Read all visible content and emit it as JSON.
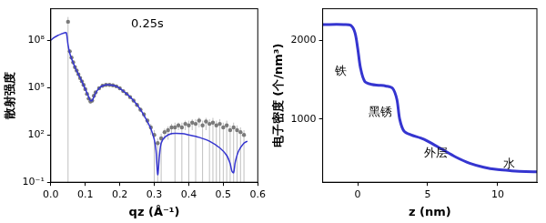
{
  "chart_data": [
    {
      "type": "scatter",
      "x_label": "qz (Å⁻¹)",
      "y_label": "散射强度",
      "annotations": [
        {
          "text": "0.25s",
          "x": 0.28,
          "y": 1000000000.0
        }
      ],
      "log": "y",
      "grid": false,
      "xlim": [
        0,
        0.6
      ],
      "xticks": [
        {
          "value": 0,
          "label": "0.0"
        },
        0.1,
        0.2,
        0.3,
        0.4,
        0.5,
        0.6
      ],
      "ylim": [
        0.1,
        10000000000.0
      ],
      "yticks": [
        {
          "value": 0.1,
          "label": "10⁻¹"
        },
        {
          "value": 100,
          "label": "10²"
        },
        {
          "value": 100000,
          "label": "10⁵"
        },
        {
          "value": 100000000,
          "label": "10⁸"
        }
      ],
      "series": [
        {
          "type": "scatter",
          "color": "#7a7a7a",
          "marker": "circle",
          "x": [
            0.05,
            0.055,
            0.06,
            0.065,
            0.07,
            0.075,
            0.08,
            0.085,
            0.09,
            0.095,
            0.1,
            0.105,
            0.11,
            0.115,
            0.12,
            0.125,
            0.13,
            0.14,
            0.15,
            0.16,
            0.17,
            0.18,
            0.19,
            0.2,
            0.21,
            0.22,
            0.23,
            0.24,
            0.25,
            0.26,
            0.27,
            0.28,
            0.29,
            0.3,
            0.31,
            0.32,
            0.33,
            0.34,
            0.35,
            0.36,
            0.37,
            0.38,
            0.39,
            0.4,
            0.41,
            0.42,
            0.43,
            0.44,
            0.45,
            0.46,
            0.47,
            0.48,
            0.49,
            0.5,
            0.51,
            0.52,
            0.53,
            0.54,
            0.55,
            0.56
          ],
          "values": [
            1500000000.0,
            20000000.0,
            8000000.0,
            4000000.0,
            2000000.0,
            1200000.0,
            700000.0,
            400000.0,
            250000.0,
            150000.0,
            80000.0,
            40000.0,
            20000.0,
            13000.0,
            15000.0,
            30000.0,
            50000.0,
            90000.0,
            130000.0,
            150000.0,
            150000.0,
            140000.0,
            120000.0,
            90000.0,
            60000.0,
            40000.0,
            25000.0,
            15000.0,
            8000.0,
            4000.0,
            2000.0,
            800.0,
            300.0,
            100.0,
            30.0,
            60.0,
            150.0,
            200.0,
            300.0,
            300.0,
            400.0,
            300.0,
            500.0,
            400.0,
            600.0,
            500.0,
            800.0,
            400.0,
            700.0,
            500.0,
            600.0,
            400.0,
            500.0,
            300.0,
            400.0,
            200.0,
            300.0,
            200.0,
            150.0,
            100.0
          ],
          "errors": [
            1500000000.0,
            5000000.0,
            2000000.0,
            1000000.0,
            400000.0,
            200000.0,
            100000.0,
            60000.0,
            40000.0,
            20000.0,
            10000.0,
            6000.0,
            4000.0,
            3000.0,
            3000.0,
            5000.0,
            8000.0,
            10000.0,
            15000.0,
            15000.0,
            15000.0,
            15000.0,
            15000.0,
            12000.0,
            10000.0,
            8000.0,
            5000.0,
            3000.0,
            2000.0,
            1200.0,
            800.0,
            400.0,
            200.0,
            100.0,
            30.0,
            60.0,
            100.0,
            150.0,
            200.0,
            300.0,
            200.0,
            300.0,
            300.0,
            400.0,
            400.0,
            500.0,
            500.0,
            400.0,
            500.0,
            500.0,
            600.0,
            400.0,
            500.0,
            300.0,
            400.0,
            200.0,
            300.0,
            200.0,
            150.0,
            100.0
          ]
        },
        {
          "type": "line",
          "color": "#3535d0",
          "line_style": "solid",
          "x": [
            0,
            0.01,
            0.02,
            0.03,
            0.04,
            0.045,
            0.05,
            0.055,
            0.06,
            0.07,
            0.08,
            0.09,
            0.1,
            0.11,
            0.115,
            0.12,
            0.13,
            0.14,
            0.15,
            0.16,
            0.17,
            0.18,
            0.19,
            0.2,
            0.22,
            0.24,
            0.26,
            0.28,
            0.29,
            0.3,
            0.305,
            0.31,
            0.315,
            0.32,
            0.33,
            0.35,
            0.38,
            0.4,
            0.43,
            0.46,
            0.49,
            0.51,
            0.52,
            0.525,
            0.53,
            0.535,
            0.545,
            0.56,
            0.57
          ],
          "values": [
            100000000.0,
            150000000.0,
            200000000.0,
            250000000.0,
            300000000.0,
            300000000.0,
            50000000.0,
            15000000.0,
            7000000.0,
            2000000.0,
            700000.0,
            250000.0,
            80000.0,
            25000.0,
            15000.0,
            15000.0,
            45000.0,
            90000.0,
            130000.0,
            150000.0,
            150000.0,
            140000.0,
            120000.0,
            90000.0,
            40000.0,
            15000.0,
            4000.0,
            700.0,
            250.0,
            50.0,
            10.0,
            0.3,
            5,
            30.0,
            70.0,
            120.0,
            120.0,
            100.0,
            70.0,
            40.0,
            15.0,
            5,
            1.5,
            0.5,
            0.4,
            2,
            10.0,
            30.0,
            40.0
          ]
        }
      ]
    },
    {
      "type": "line",
      "x_label": "z (nm)",
      "y_label": "电子密度 (个/nm³)",
      "annotations": [
        {
          "text": "铁",
          "x": -1.2,
          "y": 1600
        },
        {
          "text": "黑锈",
          "x": 1.6,
          "y": 1080
        },
        {
          "text": "外层",
          "x": 5.6,
          "y": 560
        },
        {
          "text": "水",
          "x": 10.8,
          "y": 430
        }
      ],
      "grid": false,
      "xlim": [
        -2.5,
        12.8
      ],
      "xticks": [
        0,
        5,
        10
      ],
      "ylim": [
        200,
        2400
      ],
      "yticks": [
        1000,
        2000
      ],
      "series": [
        {
          "type": "line",
          "color": "#3535d0",
          "line_style": "solid",
          "x": [
            -2.5,
            -1,
            -0.5,
            -0.2,
            0,
            0.2,
            0.5,
            1,
            1.5,
            2,
            2.5,
            2.8,
            3,
            3.3,
            3.8,
            4.5,
            5,
            6,
            7,
            8,
            9,
            10,
            11,
            12,
            12.8
          ],
          "values": [
            2200,
            2200,
            2190,
            2100,
            1900,
            1650,
            1480,
            1440,
            1430,
            1420,
            1390,
            1250,
            1000,
            850,
            800,
            760,
            720,
            620,
            520,
            440,
            390,
            360,
            345,
            335,
            333
          ]
        }
      ]
    }
  ]
}
